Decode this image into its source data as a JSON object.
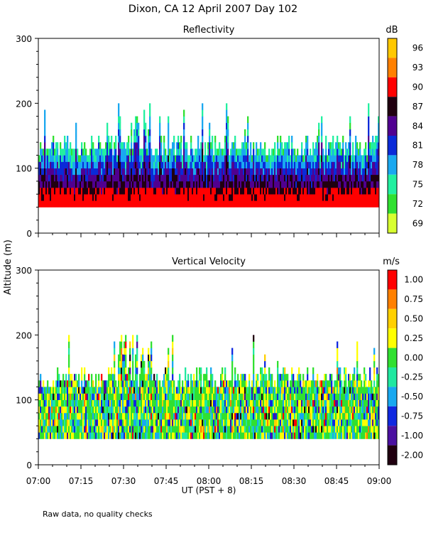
{
  "title": "Dixon, CA 12 April 2007  Day 102",
  "ylabel": "Altitude (m)",
  "xlabel": "UT  (PST + 8)",
  "footnote": "Raw data, no quality checks",
  "chart_data": [
    {
      "type": "heatmap",
      "title": "Reflectivity",
      "x_ticks": [
        "07:00",
        "07:15",
        "07:30",
        "07:45",
        "08:00",
        "08:15",
        "08:30",
        "08:45",
        "09:00"
      ],
      "x_range_minutes": [
        0,
        120
      ],
      "ylim": [
        0,
        300
      ],
      "y_ticks": [
        0,
        100,
        200,
        300
      ],
      "colorbar": {
        "unit": "dB",
        "labels": [
          "96",
          "93",
          "90",
          "87",
          "84",
          "81",
          "78",
          "75",
          "72",
          "69"
        ],
        "colors": [
          "#ffc800",
          "#ff8000",
          "#ff0000",
          "#200010",
          "#500090",
          "#0a2ad8",
          "#1aa8f0",
          "#22f0a0",
          "#30e030",
          "#d8ff30"
        ]
      },
      "echo_base_m": 40,
      "typical_top_m": 140,
      "max_top_m": 200
    },
    {
      "type": "heatmap",
      "title": "Vertical Velocity",
      "x_ticks": [
        "07:00",
        "07:15",
        "07:30",
        "07:45",
        "08:00",
        "08:15",
        "08:30",
        "08:45",
        "09:00"
      ],
      "x_range_minutes": [
        0,
        120
      ],
      "ylim": [
        0,
        300
      ],
      "y_ticks": [
        0,
        100,
        200,
        300
      ],
      "colorbar": {
        "unit": "m/s",
        "labels": [
          "1.00",
          "0.75",
          "0.50",
          "0.25",
          "0.00",
          "-0.25",
          "-0.50",
          "-0.75",
          "-1.00",
          "-2.00"
        ],
        "colors": [
          "#ff0000",
          "#ff8000",
          "#ffd000",
          "#ffff00",
          "#30e030",
          "#20e8a0",
          "#18a8f0",
          "#1028e0",
          "#4a10a0",
          "#200010"
        ]
      },
      "echo_base_m": 40,
      "typical_top_m": 140,
      "max_top_m": 200
    }
  ]
}
